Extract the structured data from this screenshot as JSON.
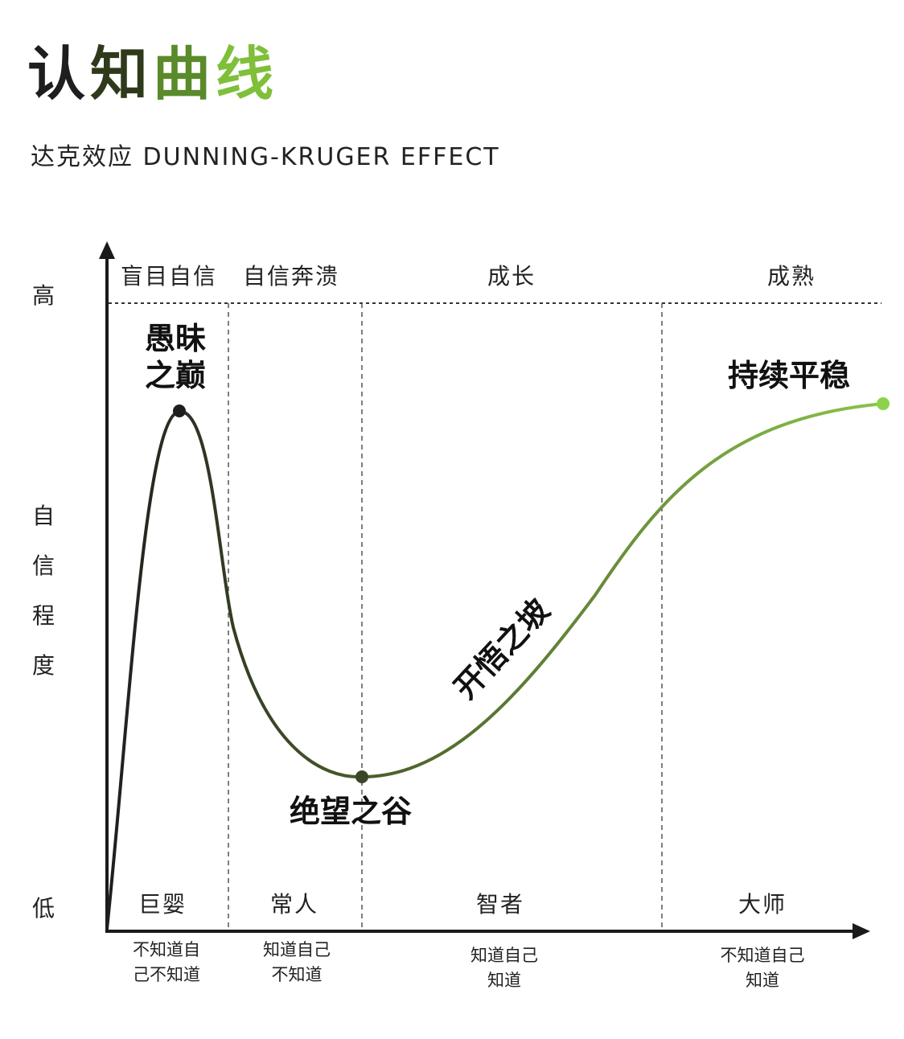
{
  "title": {
    "chars": [
      "认",
      "知",
      "曲",
      "线"
    ],
    "colors": [
      "#1e1e1e",
      "#2f3a1c",
      "#5a8a2a",
      "#7fbf3a"
    ]
  },
  "subtitle": "达克效应  DUNNING-KRUGER EFFECT",
  "y_axis": {
    "high": "高",
    "low": "低",
    "label_chars": [
      "自",
      "信",
      "程",
      "度"
    ]
  },
  "phases": [
    "盲目自信",
    "自信奔溃",
    "成长",
    "成熟"
  ],
  "stages": [
    "巨婴",
    "常人",
    "智者",
    "大师"
  ],
  "notes": [
    [
      "不知道自",
      "己不知道"
    ],
    [
      "知道自己",
      "不知道"
    ],
    [
      "知道自己",
      "知道"
    ],
    [
      "不知道自己",
      "知道"
    ]
  ],
  "points": {
    "peak": [
      "愚昧",
      "之巅"
    ],
    "valley": "绝望之谷",
    "slope": "开悟之坡",
    "plateau": "持续平稳"
  },
  "colors": {
    "curve_dark": "#1e1e1e",
    "curve_mid": "#4a5e2a",
    "curve_green": "#8bc34a",
    "plateau_dot": "#8bd34a",
    "axis": "#1a1a1a"
  }
}
